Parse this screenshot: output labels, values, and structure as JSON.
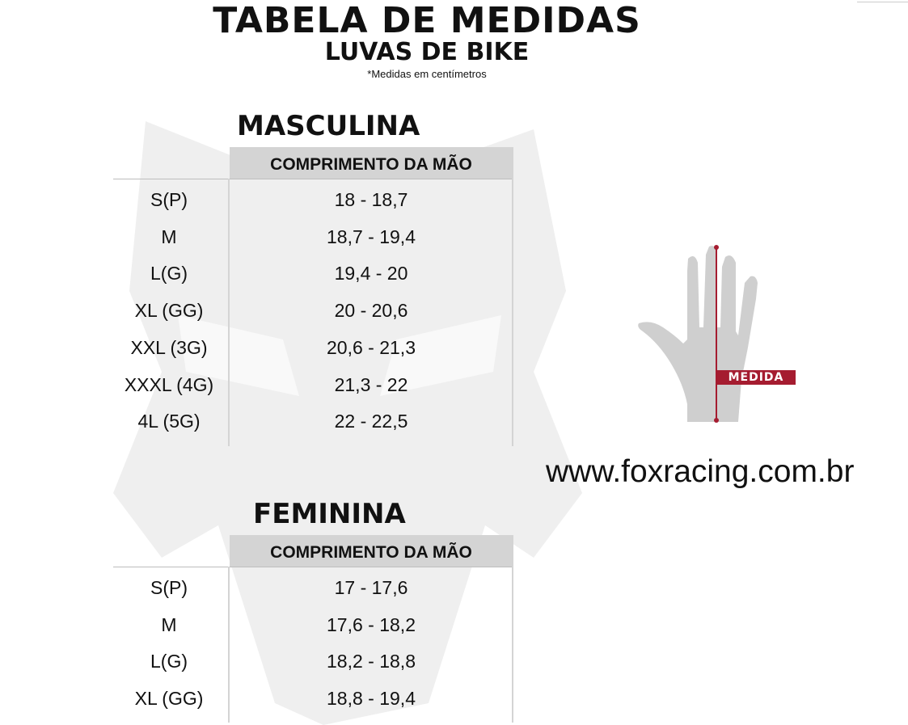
{
  "header": {
    "title": "TABELA DE MEDIDAS",
    "subtitle": "LUVAS DE BIKE",
    "note": "*Medidas em centímetros"
  },
  "masculina": {
    "title": "MASCULINA",
    "column": "COMPRIMENTO DA MÃO",
    "rows": [
      {
        "size": "S(P)",
        "value": "18 - 18,7"
      },
      {
        "size": "M",
        "value": "18,7 - 19,4"
      },
      {
        "size": "L(G)",
        "value": "19,4 - 20"
      },
      {
        "size": "XL (GG)",
        "value": "20 - 20,6"
      },
      {
        "size": "XXL (3G)",
        "value": "20,6 - 21,3"
      },
      {
        "size": "XXXL (4G)",
        "value": "21,3 - 22"
      },
      {
        "size": "4L (5G)",
        "value": "22 - 22,5"
      }
    ]
  },
  "feminina": {
    "title": "FEMININA",
    "column": "COMPRIMENTO DA MÃO",
    "rows": [
      {
        "size": "S(P)",
        "value": "17 - 17,6"
      },
      {
        "size": "M",
        "value": "17,6 - 18,2"
      },
      {
        "size": "L(G)",
        "value": "18,2 - 18,8"
      },
      {
        "size": "XL (GG)",
        "value": "18,8 - 19,4"
      }
    ]
  },
  "hand_diagram": {
    "label": "MEDIDA",
    "accent_color": "#a51c30",
    "icon": "hand-icon"
  },
  "website": "www.foxracing.com.br",
  "watermark": "fox-head-logo"
}
